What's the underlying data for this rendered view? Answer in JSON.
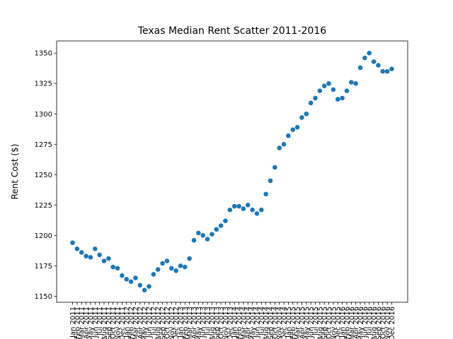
{
  "chart_data": {
    "type": "scatter",
    "title": "Texas Median Rent Scatter 2011-2016",
    "y_label": "Rent Cost ($)",
    "color": "#1f77b4",
    "categories": [
      "Jan 2011",
      "Feb 2011",
      "Mar 2011",
      "Apr 2011",
      "May 2011",
      "Jun 2011",
      "Jul 2011",
      "Aug 2011",
      "Sep 2011",
      "Oct 2011",
      "Nov 2011",
      "Dec 2011",
      "Jan 2012",
      "Feb 2012",
      "Mar 2012",
      "Apr 2012",
      "May 2012",
      "Jun 2012",
      "Jul 2012",
      "Aug 2012",
      "Sep 2012",
      "Oct 2012",
      "Nov 2012",
      "Dec 2012",
      "Jan 2013",
      "Feb 2013",
      "Mar 2013",
      "Apr 2013",
      "May 2013",
      "Jun 2013",
      "Jul 2013",
      "Aug 2013",
      "Sep 2013",
      "Oct 2013",
      "Nov 2013",
      "Dec 2013",
      "Jan 2014",
      "Feb 2014",
      "Mar 2014",
      "Apr 2014",
      "May 2014",
      "Jun 2014",
      "Jul 2014",
      "Aug 2014",
      "Sep 2014",
      "Oct 2014",
      "Nov 2014",
      "Dec 2014",
      "Jan 2015",
      "Feb 2015",
      "Mar 2015",
      "Apr 2015",
      "May 2015",
      "Jun 2015",
      "Jul 2015",
      "Aug 2015",
      "Sep 2015",
      "Oct 2015",
      "Nov 2015",
      "Dec 2015",
      "Jan 2016",
      "Feb 2016",
      "Mar 2016",
      "Apr 2016",
      "May 2016",
      "Jun 2016",
      "Jul 2016",
      "Aug 2016",
      "Sep 2016",
      "Oct 2016",
      "Nov 2016",
      "Dec 2016"
    ],
    "values": [
      1194,
      1189,
      1186,
      1183,
      1182,
      1189,
      1184,
      1179,
      1181,
      1174,
      1173,
      1167,
      1164,
      1162,
      1165,
      1159,
      1155,
      1158,
      1168,
      1172,
      1177,
      1179,
      1173,
      1171,
      1175,
      1174,
      1181,
      1196,
      1202,
      1200,
      1197,
      1201,
      1205,
      1208,
      1212,
      1221,
      1224,
      1224,
      1222,
      1225,
      1221,
      1218,
      1221,
      1234,
      1245,
      1256,
      1272,
      1275,
      1282,
      1287,
      1289,
      1297,
      1300,
      1309,
      1313,
      1319,
      1323,
      1325,
      1320,
      1312,
      1313,
      1319,
      1326,
      1325,
      1338,
      1346,
      1350,
      1343,
      1340,
      1335,
      1335,
      1337
    ],
    "ylim": [
      1145,
      1360
    ],
    "yticks": [
      1150,
      1175,
      1200,
      1225,
      1250,
      1275,
      1300,
      1325,
      1350
    ]
  }
}
